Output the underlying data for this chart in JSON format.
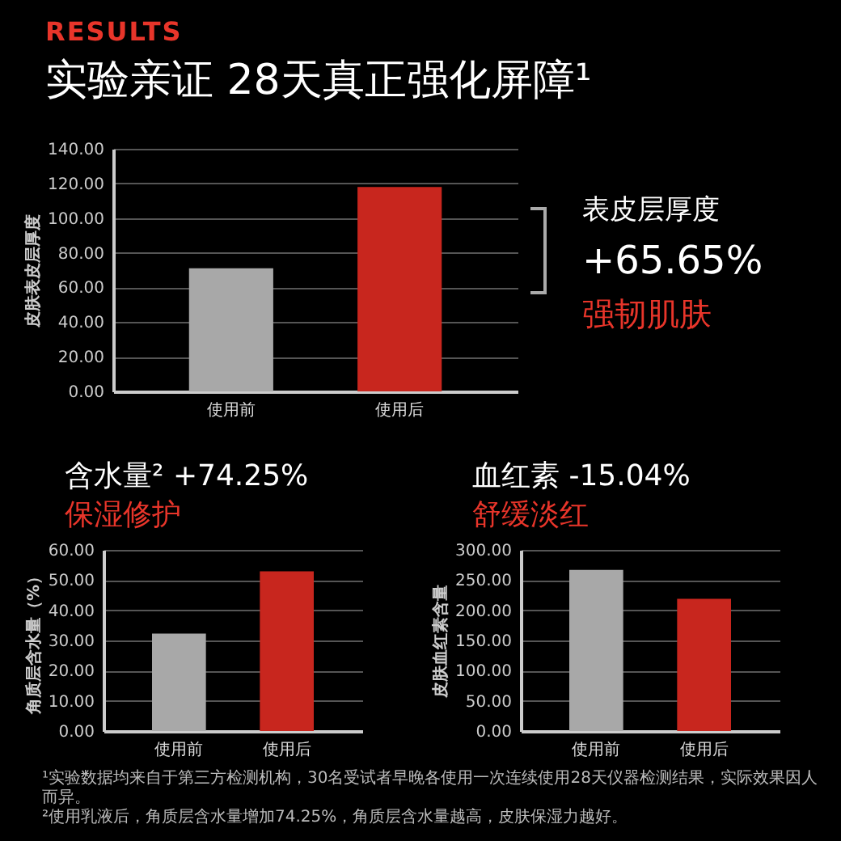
{
  "chart_data": [
    {
      "type": "bar",
      "title": "RESULTS",
      "subtitle": "实验亲证 28天真正强化屏障¹",
      "ylabel": "皮肤表皮层厚度",
      "categories": [
        "使用前",
        "使用后"
      ],
      "values": [
        71,
        118
      ],
      "colors": [
        "#a8a8a8",
        "#c8261e"
      ],
      "ylim": [
        0,
        140
      ],
      "yticks": [
        {
          "value": 0,
          "label": "0.00"
        },
        {
          "value": 20,
          "label": "20.00"
        },
        {
          "value": 40,
          "label": "40.00"
        },
        {
          "value": 60,
          "label": "60.00"
        },
        {
          "value": 80,
          "label": "80.00"
        },
        {
          "value": 100,
          "label": "100.00"
        },
        {
          "value": 120,
          "label": "120.00"
        },
        {
          "value": 140,
          "label": "140.00"
        }
      ],
      "grid": "y",
      "annotations": [
        "表皮层厚度",
        "+65.65%",
        "强韧肌肤"
      ]
    },
    {
      "type": "bar",
      "title": "含水量² +74.25%",
      "subtitle": "保湿修护",
      "ylabel": "角质层含水量（%）",
      "categories": [
        "使用前",
        "使用后"
      ],
      "values": [
        32.3,
        52.9
      ],
      "colors": [
        "#a8a8a8",
        "#c8261e"
      ],
      "ylim": [
        0,
        60
      ],
      "yticks": [
        {
          "value": 0,
          "label": "0.00"
        },
        {
          "value": 10,
          "label": "10.00"
        },
        {
          "value": 20,
          "label": "20.00"
        },
        {
          "value": 30,
          "label": "30.00"
        },
        {
          "value": 40,
          "label": "40.00"
        },
        {
          "value": 50,
          "label": "50.00"
        },
        {
          "value": 60,
          "label": "60.00"
        }
      ],
      "grid": "y"
    },
    {
      "type": "bar",
      "title": "血红素 -15.04%",
      "subtitle": "舒缓淡红",
      "ylabel": "皮肤血红素含量",
      "categories": [
        "使用前",
        "使用后"
      ],
      "values": [
        267,
        219
      ],
      "colors": [
        "#a8a8a8",
        "#c8261e"
      ],
      "ylim": [
        0,
        300
      ],
      "yticks": [
        {
          "value": 0,
          "label": "0.00"
        },
        {
          "value": 50,
          "label": "50.00"
        },
        {
          "value": 100,
          "label": "100.00"
        },
        {
          "value": 150,
          "label": "150.00"
        },
        {
          "value": 200,
          "label": "200.00"
        },
        {
          "value": 250,
          "label": "250.00"
        },
        {
          "value": 300,
          "label": "300.00"
        }
      ],
      "grid": "y",
      "annotations": [
        "¹实验数据均来自于第三方检测机构，30名受试者早晚各使用一次连续使用28天仪器检测结果，实际效果因人而异。",
        "²使用乳液后，角质层含水量增加74.25%，角质层含水量越高，皮肤保湿力越好。"
      ]
    }
  ]
}
